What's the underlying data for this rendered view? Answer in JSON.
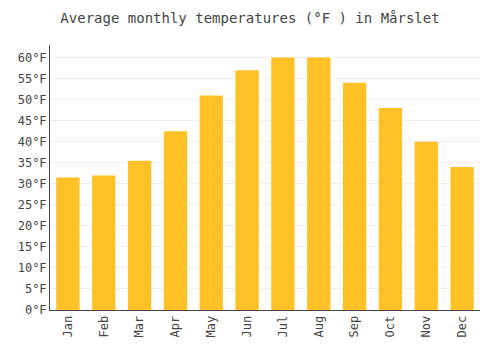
{
  "chart_data": {
    "type": "bar",
    "title": "Average monthly temperatures (°F ) in Mårslet",
    "categories": [
      "Jan",
      "Feb",
      "Mar",
      "Apr",
      "May",
      "Jun",
      "Jul",
      "Aug",
      "Sep",
      "Oct",
      "Nov",
      "Dec"
    ],
    "values": [
      31.5,
      32.0,
      35.5,
      42.5,
      51.0,
      57.0,
      60.0,
      60.0,
      54.0,
      48.0,
      40.0,
      34.0
    ],
    "color": "#FFC125",
    "ylim": [
      0,
      63
    ],
    "yticks": [
      {
        "value": 0,
        "label": "0°F"
      },
      {
        "value": 5,
        "label": "5°F"
      },
      {
        "value": 10,
        "label": "10°F"
      },
      {
        "value": 15,
        "label": "15°F"
      },
      {
        "value": 20,
        "label": "20°F"
      },
      {
        "value": 25,
        "label": "25°F"
      },
      {
        "value": 30,
        "label": "30°F"
      },
      {
        "value": 35,
        "label": "35°F"
      },
      {
        "value": 40,
        "label": "40°F"
      },
      {
        "value": 45,
        "label": "45°F"
      },
      {
        "value": 50,
        "label": "50°F"
      },
      {
        "value": 55,
        "label": "55°F"
      },
      {
        "value": 60,
        "label": "60°F"
      }
    ],
    "grid": true
  }
}
